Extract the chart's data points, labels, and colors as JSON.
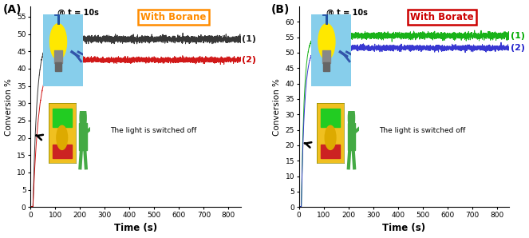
{
  "panel_A": {
    "title": "With Borane",
    "title_color": "#FF8C00",
    "title_box_color": "#FF8C00",
    "label": "(A)",
    "curve1_color": "#222222",
    "curve2_color": "#CC0000",
    "curve1_plateau": 48.5,
    "curve2_plateau": 42.5,
    "curve1_label": "(1)",
    "curve2_label": "(2)",
    "curve1_label_color": "#222222",
    "curve2_label_color": "#CC0000",
    "annotation_text": "The light is switched off",
    "ylim": [
      0,
      58
    ],
    "yticks": [
      0,
      5,
      10,
      15,
      20,
      25,
      30,
      35,
      40,
      45,
      50,
      55
    ],
    "xlim": [
      0,
      850
    ],
    "xticks": [
      0,
      100,
      200,
      300,
      400,
      500,
      600,
      700,
      800
    ],
    "xlabel": "Time (s)",
    "ylabel": "Conversion %",
    "at_t_text": "@ t = 10s",
    "rise_rate_1": 0.06,
    "rise_rate_2": 0.042,
    "noise_1": 0.45,
    "noise_2": 0.35
  },
  "panel_B": {
    "title": "With Borate",
    "title_color": "#CC0000",
    "title_box_color": "#CC0000",
    "label": "(B)",
    "curve1_color": "#00AA00",
    "curve2_color": "#2222CC",
    "curve1_plateau": 55.5,
    "curve2_plateau": 51.5,
    "curve1_label": "(1)",
    "curve2_label": "(2)",
    "curve1_label_color": "#00AA00",
    "curve2_label_color": "#2222CC",
    "annotation_text": "The light is switched off",
    "ylim": [
      0,
      65
    ],
    "yticks": [
      0,
      5,
      10,
      15,
      20,
      25,
      30,
      35,
      40,
      45,
      50,
      55,
      60
    ],
    "xlim": [
      0,
      850
    ],
    "xticks": [
      0,
      100,
      200,
      300,
      400,
      500,
      600,
      700,
      800
    ],
    "xlabel": "Time (s)",
    "ylabel": "Conversion %",
    "at_t_text": "@ t = 10s",
    "rise_rate_1": 0.085,
    "rise_rate_2": 0.075,
    "noise_1": 0.5,
    "noise_2": 0.4
  }
}
